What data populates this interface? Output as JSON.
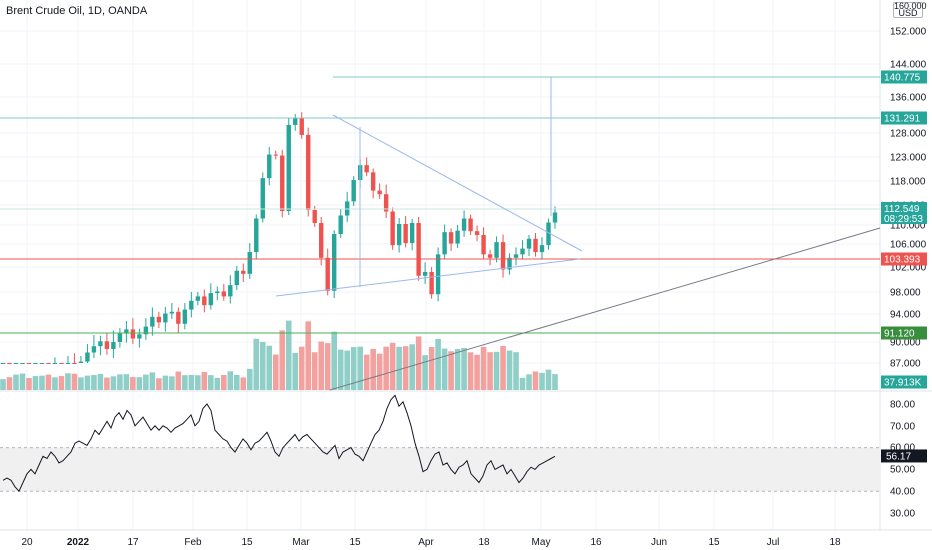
{
  "header": {
    "symbol_title": "Brent Crude Oil, 1D, OANDA",
    "currency_label": "USD",
    "currency_top_value": "160.000"
  },
  "colors": {
    "up": "#26a69a",
    "down": "#ef5350",
    "up_volume": "#8fcfc8",
    "down_volume": "#f3a19e",
    "trendline": "#9db8ee",
    "target_line": "#80cbc4",
    "support_line": "#ef5350",
    "green_line": "#4caf50",
    "rsi_line": "#131722",
    "rsi_band": "#f0f0f0"
  },
  "chart_data": {
    "type": "candlestick",
    "y_axis": {
      "ticks": [
        "152.000",
        "144.000",
        "136.000",
        "128.000",
        "123.000",
        "118.000",
        "114.000",
        "110.000",
        "106.000",
        "102.000",
        "98.000",
        "94.000",
        "90.000",
        "87.000"
      ],
      "tick_values": [
        152,
        144,
        136,
        128,
        123,
        118,
        114,
        110,
        106,
        102,
        98,
        94,
        90,
        87
      ]
    },
    "x_axis": {
      "ticks": [
        "20",
        "2022",
        "17",
        "Feb",
        "15",
        "Mar",
        "15",
        "Apr",
        "18",
        "May",
        "16",
        "Jun",
        "15",
        "Jul",
        "18"
      ],
      "bold_ticks": [
        "2022"
      ]
    },
    "price_labels": [
      {
        "value": "140.775",
        "color": "#26a69a"
      },
      {
        "value": "131.291",
        "color": "#26a69a"
      },
      {
        "value": "112.549",
        "sub": "08:29:53",
        "color": "#26a69a"
      },
      {
        "value": "103.393",
        "color": "#ef5350"
      },
      {
        "value": "91.120",
        "color": "#388e3c"
      },
      {
        "value": "37.913K",
        "color": "#26a69a"
      }
    ],
    "candles_close": [
      83.2,
      82.6,
      83.7,
      84.6,
      83.7,
      84.8,
      85.4,
      85.0,
      86.2,
      85.1,
      86.8,
      86.0,
      87.2,
      88.5,
      89.4,
      90.1,
      89.0,
      90.0,
      91.2,
      91.8,
      90.5,
      91.1,
      92.2,
      93.6,
      92.8,
      94.1,
      94.4,
      92.6,
      94.8,
      96.4,
      97.2,
      95.6,
      97.8,
      98.1,
      97.2,
      99.1,
      101.4,
      100.9,
      104.6,
      111.3,
      118.6,
      123.5,
      123.3,
      112.8,
      129.8,
      131.4,
      127.6,
      113.0,
      110.4,
      103.6,
      98.2,
      108.1,
      111.9,
      114.6,
      118.2,
      121.3,
      119.8,
      116.4,
      115.8,
      112.7,
      105.8,
      110.2,
      106.2,
      110.4,
      100.6,
      101.2,
      97.6,
      104.2,
      108.5,
      106.1,
      108.8,
      111.3,
      108.7,
      107.9,
      104.2,
      103.6,
      106.4,
      101.6,
      103.6,
      104.2,
      105.2,
      107.1,
      104.6,
      105.8,
      110.5,
      112.5
    ],
    "rsi": {
      "ticks": [
        "80.00",
        "70.00",
        "60.00",
        "50.00",
        "40.00",
        "30.00"
      ],
      "tick_values": [
        80,
        70,
        60,
        50,
        40,
        30
      ],
      "band": [
        40,
        60
      ],
      "current_label": "56.17",
      "values": [
        45,
        46,
        45,
        42,
        40,
        44,
        48,
        50,
        48,
        52,
        56,
        55,
        58,
        56,
        53,
        54,
        56,
        58,
        62,
        63,
        62,
        61,
        64,
        68,
        66,
        69,
        72,
        69,
        74,
        76,
        73,
        77,
        75,
        70,
        72,
        74,
        71,
        68,
        70,
        68,
        70,
        69,
        67,
        69,
        70,
        71,
        73,
        75,
        70,
        72,
        78,
        80,
        77,
        68,
        66,
        64,
        63,
        60,
        58,
        61,
        64,
        62,
        59,
        62,
        63,
        65,
        67,
        63,
        58,
        56,
        60,
        62,
        64,
        66,
        63,
        65,
        66,
        64,
        62,
        60,
        58,
        57,
        59,
        61,
        55,
        58,
        59,
        60,
        57,
        56,
        54,
        58,
        62,
        66,
        68,
        72,
        78,
        82,
        84,
        79,
        81,
        76,
        70,
        62,
        56,
        49,
        50,
        54,
        57,
        58,
        52,
        53,
        50,
        48,
        51,
        52,
        54,
        48,
        46,
        44,
        47,
        52,
        54,
        50,
        51,
        52,
        48,
        50,
        47,
        44,
        46,
        49,
        51,
        50,
        52,
        53,
        54,
        55,
        56
      ]
    }
  }
}
